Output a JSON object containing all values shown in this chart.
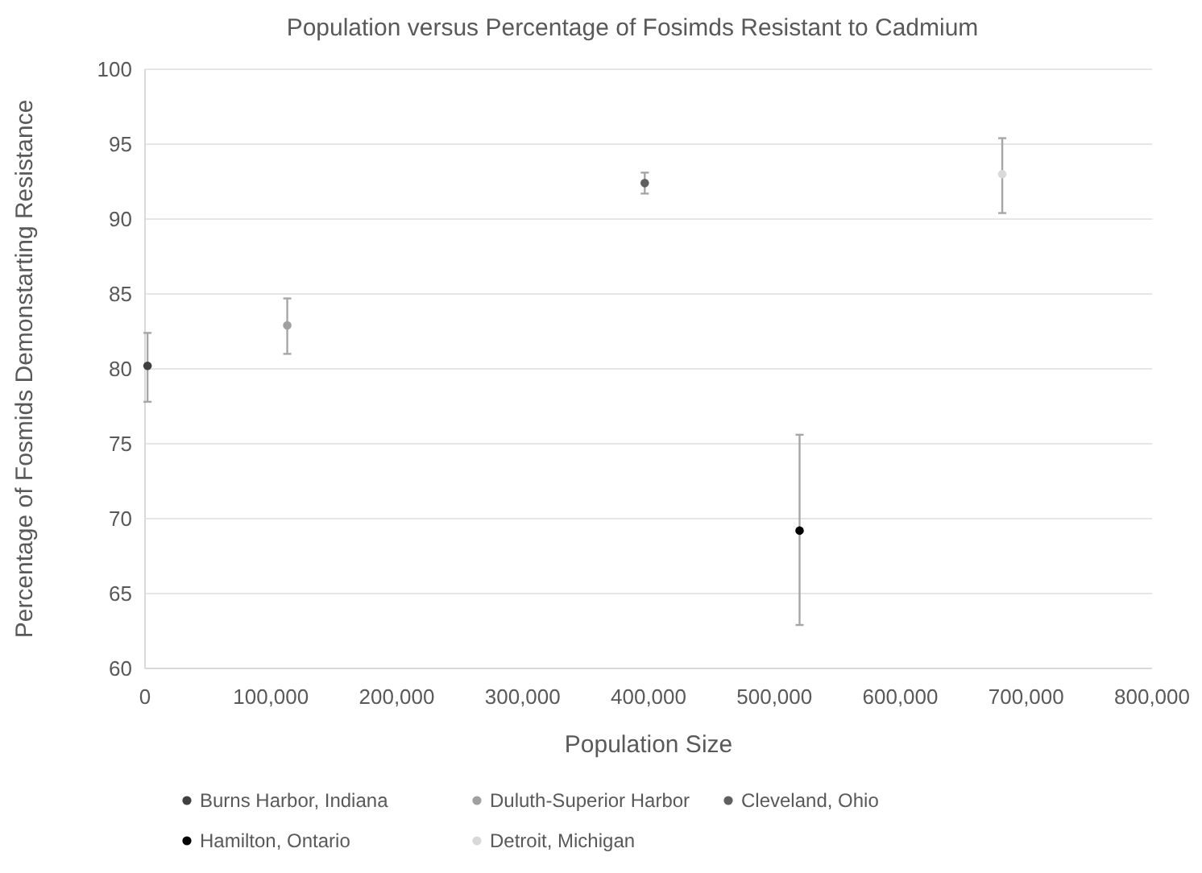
{
  "chart_data": {
    "type": "scatter",
    "title": "Population versus Percentage of Fosimds Resistant to Cadmium",
    "xlabel": "Population Size",
    "ylabel": "Percentage of Fosmids Demonstarting Resistance",
    "xlim": [
      0,
      800000
    ],
    "xticks": [
      {
        "value": 0,
        "label": "0"
      },
      {
        "value": 100000,
        "label": "100,000"
      },
      {
        "value": 200000,
        "label": "200,000"
      },
      {
        "value": 300000,
        "label": "300,000"
      },
      {
        "value": 400000,
        "label": "400,000"
      },
      {
        "value": 500000,
        "label": "500,000"
      },
      {
        "value": 600000,
        "label": "600,000"
      },
      {
        "value": 700000,
        "label": "700,000"
      },
      {
        "value": 800000,
        "label": "800,000"
      }
    ],
    "ylim": [
      60,
      100
    ],
    "yticks": [
      60,
      65,
      70,
      75,
      80,
      85,
      90,
      95,
      100
    ],
    "grid": "y",
    "legend": "bottom",
    "marker": "circle",
    "series": [
      {
        "name": "Burns Harbor, Indiana",
        "color": "#404040",
        "x": [
          2000
        ],
        "values": [
          80.2
        ],
        "errors": [
          [
            77.8,
            82.4
          ]
        ]
      },
      {
        "name": "Duluth-Superior Harbor",
        "color": "#a0a0a0",
        "x": [
          113000
        ],
        "values": [
          82.9
        ],
        "errors": [
          [
            81.0,
            84.7
          ]
        ]
      },
      {
        "name": "Cleveland, Ohio",
        "color": "#606060",
        "x": [
          397000
        ],
        "values": [
          92.4
        ],
        "errors": [
          [
            91.7,
            93.1
          ]
        ]
      },
      {
        "name": "Hamilton, Ontario",
        "color": "#000000",
        "x": [
          520000
        ],
        "values": [
          69.2
        ],
        "errors": [
          [
            62.9,
            75.6
          ]
        ]
      },
      {
        "name": "Detroit, Michigan",
        "color": "#d9d9d9",
        "x": [
          681000
        ],
        "values": [
          93.0
        ],
        "errors": [
          [
            90.4,
            95.4
          ]
        ]
      }
    ]
  }
}
